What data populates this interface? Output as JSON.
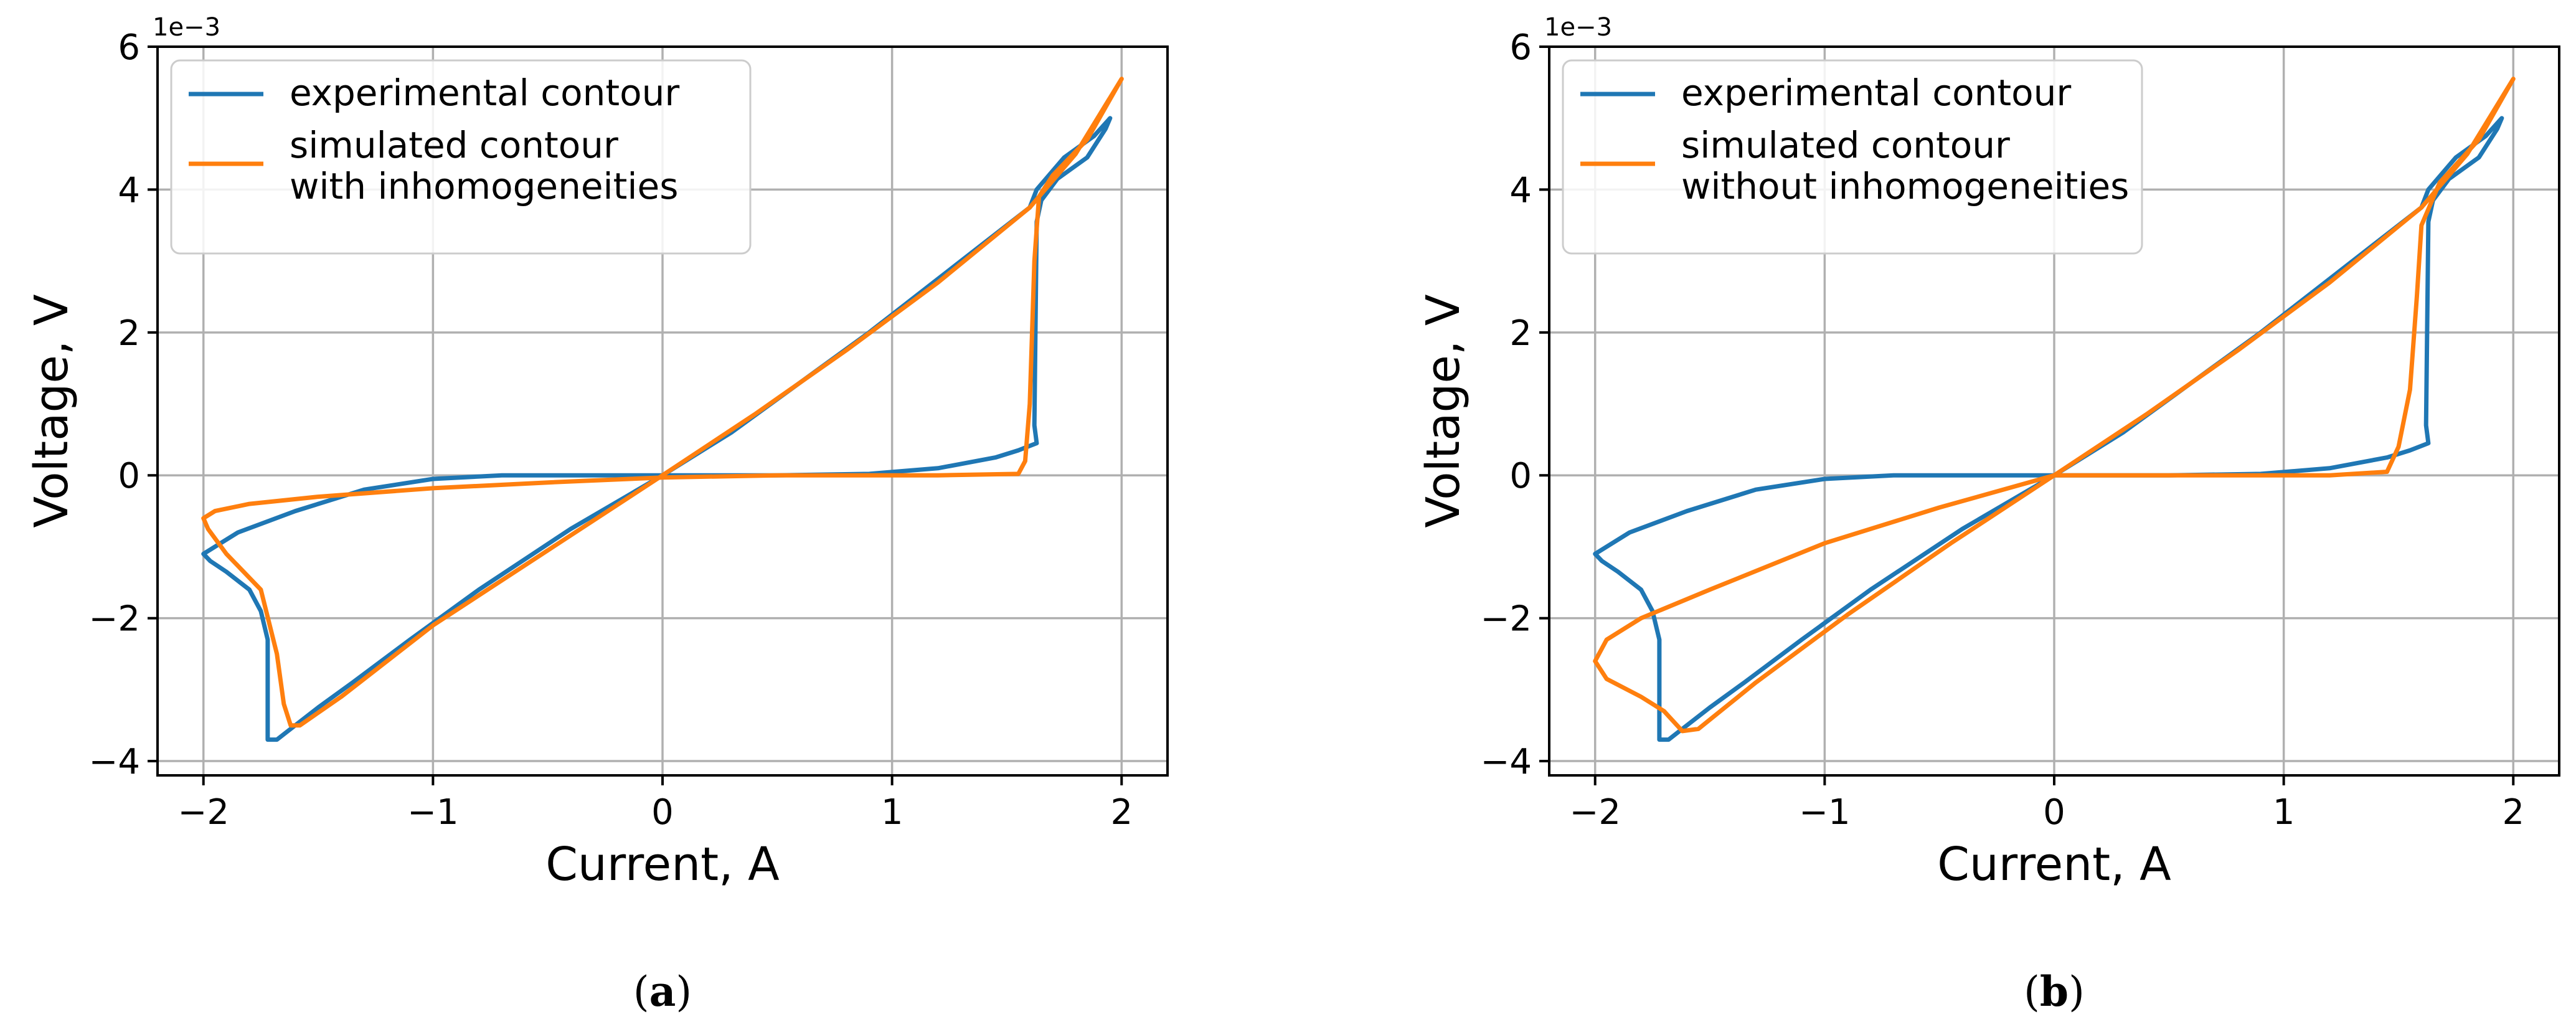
{
  "colors": {
    "experimental": "#1f77b4",
    "simulated": "#ff7f0e",
    "grid": "#b0b0b0",
    "axes": "#000000"
  },
  "chart_data": [
    {
      "type": "line",
      "panel_label": "a",
      "xlabel": "Current, A",
      "ylabel": "Voltage, V",
      "y_scale_note": "1e−3",
      "xlim": [
        -2.2,
        2.2
      ],
      "ylim": [
        -4.2,
        6.0
      ],
      "x_ticks": [
        -2,
        -1,
        0,
        1,
        2
      ],
      "x_tick_labels": [
        "−2",
        "−1",
        "0",
        "1",
        "2"
      ],
      "y_ticks": [
        -4,
        -2,
        0,
        2,
        4,
        6
      ],
      "y_tick_labels": [
        "−4",
        "−2",
        "0",
        "2",
        "4",
        "6"
      ],
      "grid": true,
      "legend_position": "top-left",
      "series": [
        {
          "name": "experimental contour",
          "color": "#1f77b4",
          "points": [
            [
              0,
              0
            ],
            [
              0.3,
              0.6
            ],
            [
              0.6,
              1.3
            ],
            [
              0.9,
              2.0
            ],
            [
              1.2,
              2.75
            ],
            [
              1.4,
              3.25
            ],
            [
              1.6,
              3.75
            ],
            [
              1.63,
              4.0
            ],
            [
              1.75,
              4.45
            ],
            [
              1.88,
              4.75
            ],
            [
              1.95,
              5.0
            ],
            [
              1.93,
              4.85
            ],
            [
              1.85,
              4.45
            ],
            [
              1.72,
              4.15
            ],
            [
              1.65,
              3.85
            ],
            [
              1.63,
              3.55
            ],
            [
              1.62,
              0.7
            ],
            [
              1.63,
              0.45
            ],
            [
              1.55,
              0.35
            ],
            [
              1.45,
              0.25
            ],
            [
              1.2,
              0.1
            ],
            [
              0.9,
              0.02
            ],
            [
              0.5,
              0.0
            ],
            [
              0,
              0
            ],
            [
              -0.4,
              -0.75
            ],
            [
              -0.8,
              -1.6
            ],
            [
              -1.1,
              -2.3
            ],
            [
              -1.35,
              -2.9
            ],
            [
              -1.5,
              -3.25
            ],
            [
              -1.62,
              -3.55
            ],
            [
              -1.68,
              -3.7
            ],
            [
              -1.72,
              -3.7
            ],
            [
              -1.72,
              -2.3
            ],
            [
              -1.75,
              -1.9
            ],
            [
              -1.8,
              -1.6
            ],
            [
              -1.9,
              -1.35
            ],
            [
              -1.97,
              -1.2
            ],
            [
              -2.0,
              -1.1
            ],
            [
              -1.85,
              -0.8
            ],
            [
              -1.6,
              -0.5
            ],
            [
              -1.3,
              -0.2
            ],
            [
              -1.0,
              -0.05
            ],
            [
              -0.7,
              0.0
            ],
            [
              -0.3,
              0.0
            ],
            [
              0,
              0
            ]
          ]
        },
        {
          "name": "simulated contour\nwith inhomogeneities",
          "color": "#ff7f0e",
          "points": [
            [
              0,
              0
            ],
            [
              0.4,
              0.85
            ],
            [
              0.8,
              1.75
            ],
            [
              1.2,
              2.7
            ],
            [
              1.6,
              3.75
            ],
            [
              1.8,
              4.5
            ],
            [
              2.0,
              5.55
            ],
            [
              1.85,
              4.7
            ],
            [
              1.7,
              4.2
            ],
            [
              1.64,
              3.9
            ],
            [
              1.62,
              3.0
            ],
            [
              1.6,
              1.0
            ],
            [
              1.58,
              0.2
            ],
            [
              1.55,
              0.02
            ],
            [
              1.2,
              0.0
            ],
            [
              0.5,
              0.0
            ],
            [
              0,
              -0.03
            ],
            [
              -0.5,
              -0.1
            ],
            [
              -1.0,
              -0.18
            ],
            [
              -1.5,
              -0.3
            ],
            [
              -1.8,
              -0.4
            ],
            [
              -1.95,
              -0.5
            ],
            [
              -2.0,
              -0.6
            ],
            [
              -1.98,
              -0.75
            ],
            [
              -1.9,
              -1.1
            ],
            [
              -1.75,
              -1.6
            ],
            [
              -1.68,
              -2.5
            ],
            [
              -1.65,
              -3.2
            ],
            [
              -1.62,
              -3.5
            ],
            [
              -1.58,
              -3.5
            ],
            [
              -1.4,
              -3.1
            ],
            [
              -1.0,
              -2.1
            ],
            [
              -0.5,
              -1.05
            ],
            [
              0,
              0
            ]
          ]
        }
      ]
    },
    {
      "type": "line",
      "panel_label": "b",
      "xlabel": "Current, A",
      "ylabel": "Voltage, V",
      "y_scale_note": "1e−3",
      "xlim": [
        -2.2,
        2.2
      ],
      "ylim": [
        -4.2,
        6.0
      ],
      "x_ticks": [
        -2,
        -1,
        0,
        1,
        2
      ],
      "x_tick_labels": [
        "−2",
        "−1",
        "0",
        "1",
        "2"
      ],
      "y_ticks": [
        -4,
        -2,
        0,
        2,
        4,
        6
      ],
      "y_tick_labels": [
        "−4",
        "−2",
        "0",
        "2",
        "4",
        "6"
      ],
      "grid": true,
      "legend_position": "top-left",
      "series": [
        {
          "name": "experimental contour",
          "color": "#1f77b4",
          "points": [
            [
              0,
              0
            ],
            [
              0.3,
              0.6
            ],
            [
              0.6,
              1.3
            ],
            [
              0.9,
              2.0
            ],
            [
              1.2,
              2.75
            ],
            [
              1.4,
              3.25
            ],
            [
              1.6,
              3.75
            ],
            [
              1.63,
              4.0
            ],
            [
              1.75,
              4.45
            ],
            [
              1.88,
              4.75
            ],
            [
              1.95,
              5.0
            ],
            [
              1.93,
              4.85
            ],
            [
              1.85,
              4.45
            ],
            [
              1.72,
              4.15
            ],
            [
              1.65,
              3.85
            ],
            [
              1.63,
              3.55
            ],
            [
              1.62,
              0.7
            ],
            [
              1.63,
              0.45
            ],
            [
              1.55,
              0.35
            ],
            [
              1.45,
              0.25
            ],
            [
              1.2,
              0.1
            ],
            [
              0.9,
              0.02
            ],
            [
              0.5,
              0.0
            ],
            [
              0,
              0
            ],
            [
              -0.4,
              -0.75
            ],
            [
              -0.8,
              -1.6
            ],
            [
              -1.1,
              -2.3
            ],
            [
              -1.35,
              -2.9
            ],
            [
              -1.5,
              -3.25
            ],
            [
              -1.62,
              -3.55
            ],
            [
              -1.68,
              -3.7
            ],
            [
              -1.72,
              -3.7
            ],
            [
              -1.72,
              -2.3
            ],
            [
              -1.75,
              -1.9
            ],
            [
              -1.8,
              -1.6
            ],
            [
              -1.9,
              -1.35
            ],
            [
              -1.97,
              -1.2
            ],
            [
              -2.0,
              -1.1
            ],
            [
              -1.85,
              -0.8
            ],
            [
              -1.6,
              -0.5
            ],
            [
              -1.3,
              -0.2
            ],
            [
              -1.0,
              -0.05
            ],
            [
              -0.7,
              0.0
            ],
            [
              -0.3,
              0.0
            ],
            [
              0,
              0
            ]
          ]
        },
        {
          "name": "simulated contour\nwithout inhomogeneities",
          "color": "#ff7f0e",
          "points": [
            [
              0,
              0
            ],
            [
              0.4,
              0.85
            ],
            [
              0.8,
              1.75
            ],
            [
              1.2,
              2.7
            ],
            [
              1.6,
              3.75
            ],
            [
              1.8,
              4.5
            ],
            [
              2.0,
              5.55
            ],
            [
              1.85,
              4.7
            ],
            [
              1.68,
              4.1
            ],
            [
              1.6,
              3.5
            ],
            [
              1.58,
              2.5
            ],
            [
              1.55,
              1.2
            ],
            [
              1.5,
              0.4
            ],
            [
              1.45,
              0.05
            ],
            [
              1.2,
              0.0
            ],
            [
              0.5,
              0.0
            ],
            [
              0,
              0
            ],
            [
              -0.5,
              -0.45
            ],
            [
              -1.0,
              -0.95
            ],
            [
              -1.5,
              -1.6
            ],
            [
              -1.8,
              -2.0
            ],
            [
              -1.95,
              -2.3
            ],
            [
              -2.0,
              -2.6
            ],
            [
              -1.95,
              -2.85
            ],
            [
              -1.8,
              -3.1
            ],
            [
              -1.7,
              -3.3
            ],
            [
              -1.62,
              -3.58
            ],
            [
              -1.55,
              -3.55
            ],
            [
              -1.3,
              -2.9
            ],
            [
              -0.9,
              -1.95
            ],
            [
              -0.45,
              -0.95
            ],
            [
              0,
              0
            ]
          ]
        }
      ]
    }
  ]
}
